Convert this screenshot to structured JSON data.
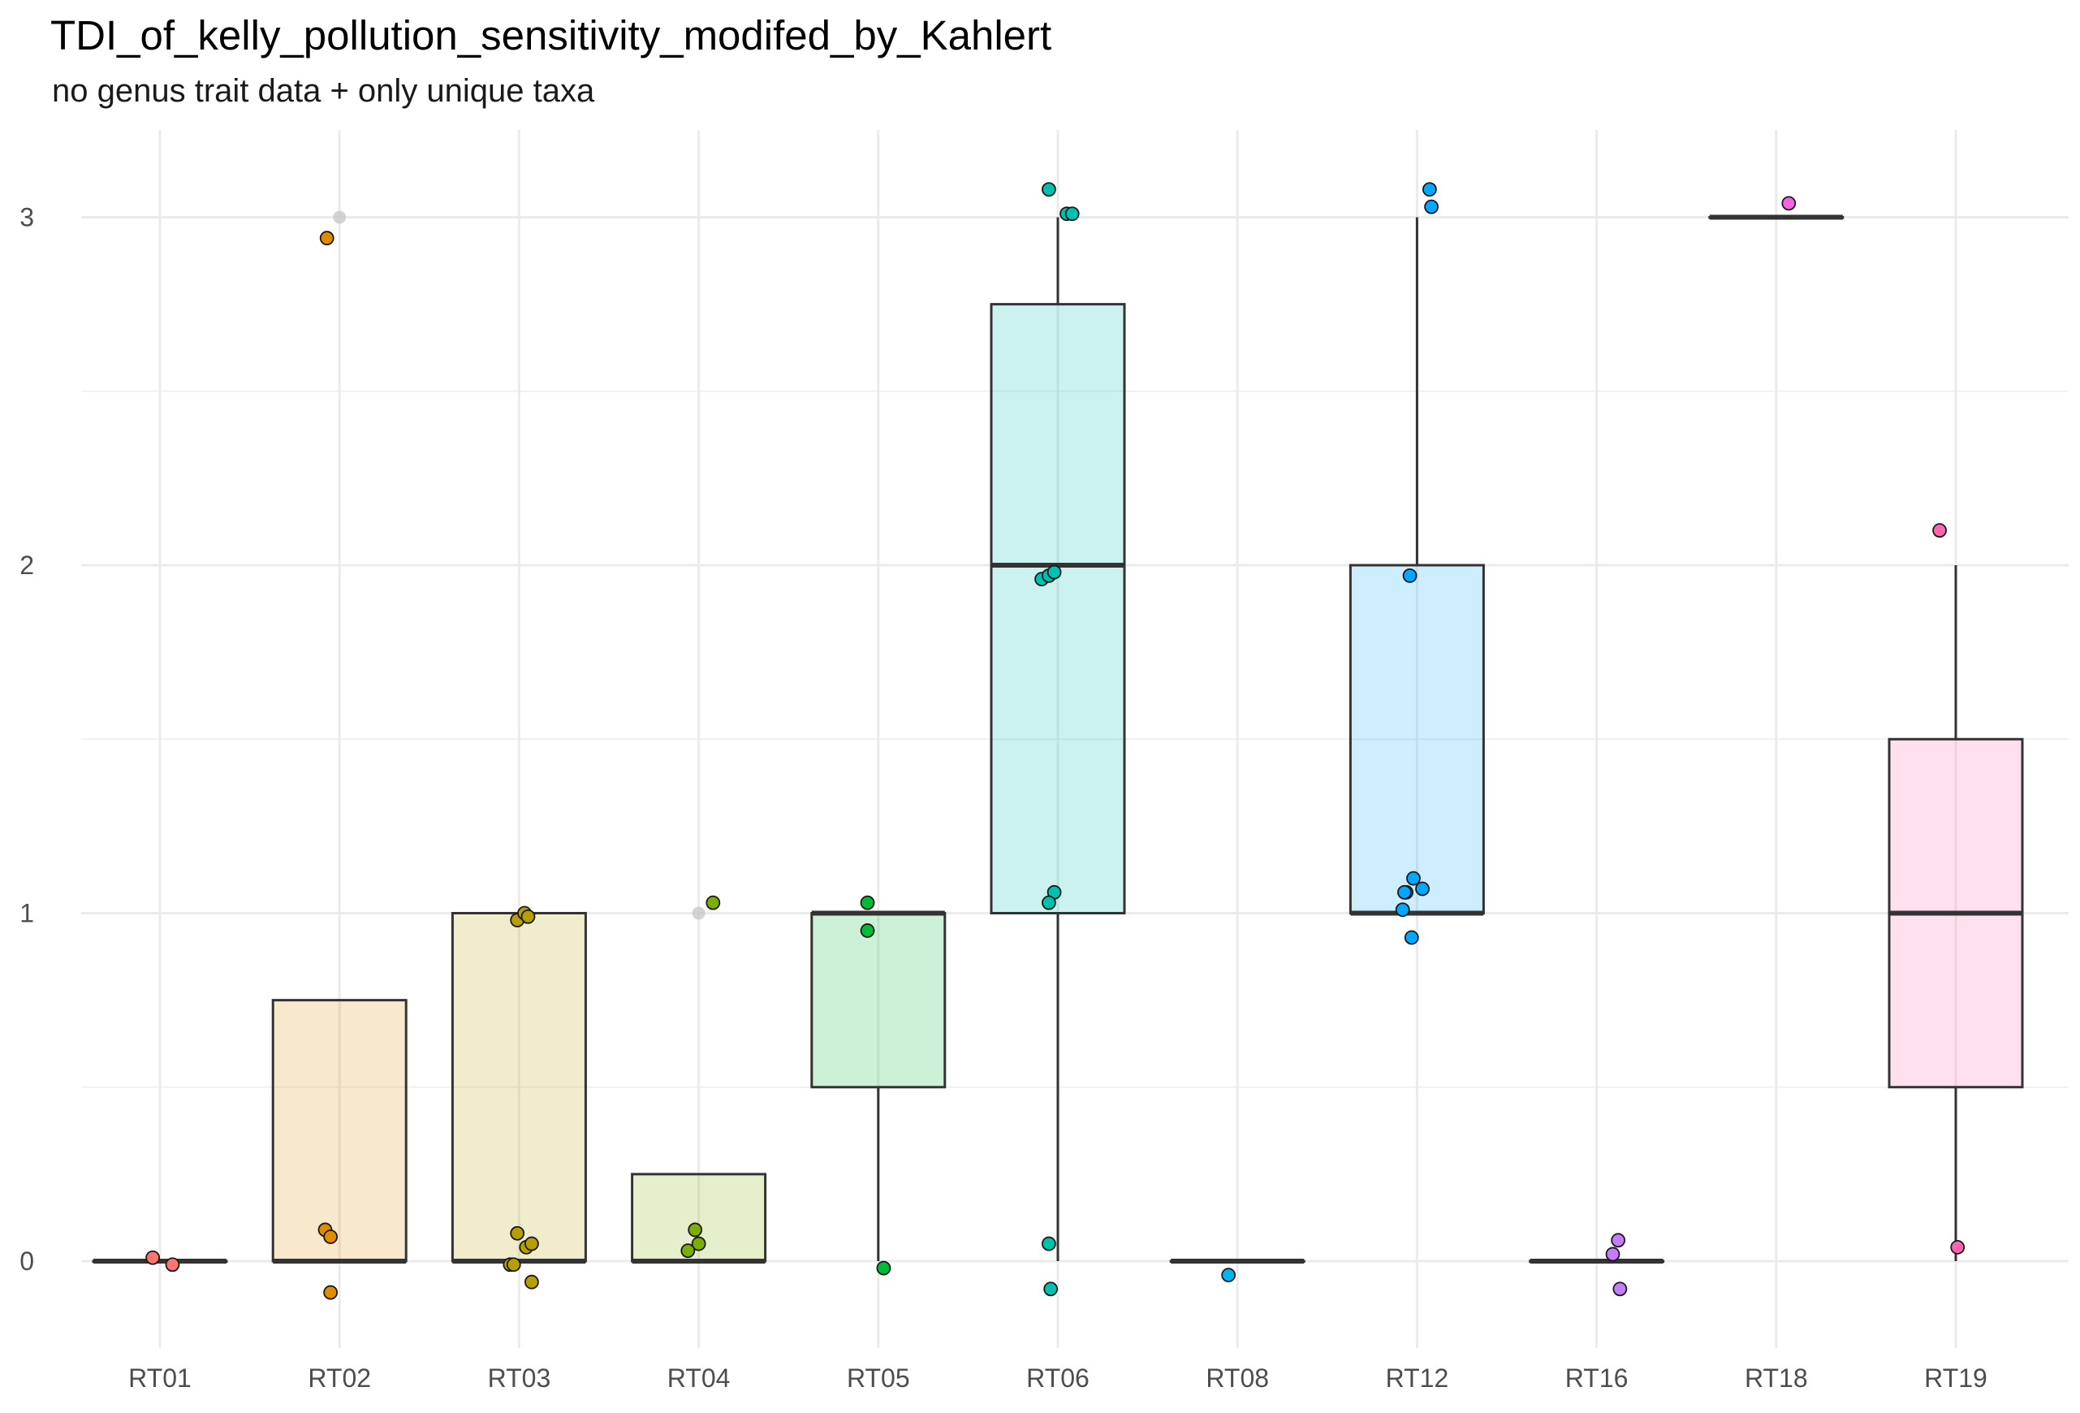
{
  "chart_data": {
    "type": "box",
    "title": "TDI_of_kelly_pollution_sensitivity_modifed_by_Kahlert",
    "subtitle": "no genus trait data + only unique taxa",
    "xlabel": "",
    "ylabel": "",
    "ylim": [
      -0.23,
      3.25
    ],
    "y_ticks": [
      0,
      1,
      2,
      3
    ],
    "y_tick_labels": [
      "0",
      "1",
      "2",
      "3"
    ],
    "grid": true,
    "legend": "none",
    "categories": [
      "RT01",
      "RT02",
      "RT03",
      "RT04",
      "RT05",
      "RT06",
      "RT08",
      "RT12",
      "RT16",
      "RT18",
      "RT19"
    ],
    "boxes": [
      {
        "category": "RT01",
        "q1": 0,
        "median": 0,
        "q3": 0,
        "whisker_low": 0,
        "whisker_high": 0,
        "outliers": [],
        "fill": "#f8766d"
      },
      {
        "category": "RT02",
        "q1": 0,
        "median": 0,
        "q3": 0.75,
        "whisker_low": 0,
        "whisker_high": 0.75,
        "outliers": [
          3
        ],
        "fill": "#de8c00"
      },
      {
        "category": "RT03",
        "q1": 0,
        "median": 0,
        "q3": 1,
        "whisker_low": 0,
        "whisker_high": 1,
        "outliers": [],
        "fill": "#b79f00"
      },
      {
        "category": "RT04",
        "q1": 0,
        "median": 0,
        "q3": 0.25,
        "whisker_low": 0,
        "whisker_high": 0.25,
        "outliers": [
          1
        ],
        "fill": "#7cae00"
      },
      {
        "category": "RT05",
        "q1": 0.5,
        "median": 1,
        "q3": 1,
        "whisker_low": 0,
        "whisker_high": 1,
        "outliers": [],
        "fill": "#00ba38"
      },
      {
        "category": "RT06",
        "q1": 1,
        "median": 2,
        "q3": 2.75,
        "whisker_low": 0,
        "whisker_high": 3,
        "outliers": [],
        "fill": "#00c0af"
      },
      {
        "category": "RT08",
        "q1": 0,
        "median": 0,
        "q3": 0,
        "whisker_low": 0,
        "whisker_high": 0,
        "outliers": [],
        "fill": "#00b4f0"
      },
      {
        "category": "RT12",
        "q1": 1,
        "median": 1,
        "q3": 2,
        "whisker_low": 1,
        "whisker_high": 3,
        "outliers": [],
        "fill": "#00a9ff"
      },
      {
        "category": "RT16",
        "q1": 0,
        "median": 0,
        "q3": 0,
        "whisker_low": 0,
        "whisker_high": 0,
        "outliers": [],
        "fill": "#c77cff"
      },
      {
        "category": "RT18",
        "q1": 3,
        "median": 3,
        "q3": 3,
        "whisker_low": 3,
        "whisker_high": 3,
        "outliers": [],
        "fill": "#f564e3"
      },
      {
        "category": "RT19",
        "q1": 0.5,
        "median": 1,
        "q3": 1.5,
        "whisker_low": 0,
        "whisker_high": 2,
        "outliers": [],
        "fill": "#ff64b0"
      }
    ],
    "points": [
      {
        "category": "RT01",
        "x": -0.04,
        "y": 0.01,
        "color": "#f8766d"
      },
      {
        "category": "RT01",
        "x": 0.07,
        "y": -0.01,
        "color": "#f8766d"
      },
      {
        "category": "RT02",
        "x": -0.07,
        "y": 2.94,
        "color": "#de8c00"
      },
      {
        "category": "RT02",
        "x": -0.08,
        "y": 0.09,
        "color": "#de8c00"
      },
      {
        "category": "RT02",
        "x": -0.05,
        "y": 0.07,
        "color": "#de8c00"
      },
      {
        "category": "RT02",
        "x": -0.05,
        "y": -0.09,
        "color": "#de8c00"
      },
      {
        "category": "RT03",
        "x": -0.01,
        "y": 0.98,
        "color": "#b79f00"
      },
      {
        "category": "RT03",
        "x": 0.03,
        "y": 1.0,
        "color": "#b79f00"
      },
      {
        "category": "RT03",
        "x": 0.05,
        "y": 0.99,
        "color": "#b79f00"
      },
      {
        "category": "RT03",
        "x": -0.01,
        "y": 0.08,
        "color": "#b79f00"
      },
      {
        "category": "RT03",
        "x": 0.04,
        "y": 0.04,
        "color": "#b79f00"
      },
      {
        "category": "RT03",
        "x": 0.07,
        "y": 0.05,
        "color": "#b79f00"
      },
      {
        "category": "RT03",
        "x": -0.05,
        "y": -0.01,
        "color": "#b79f00"
      },
      {
        "category": "RT03",
        "x": -0.03,
        "y": -0.01,
        "color": "#b79f00"
      },
      {
        "category": "RT03",
        "x": 0.07,
        "y": -0.06,
        "color": "#b79f00"
      },
      {
        "category": "RT04",
        "x": 0.08,
        "y": 1.03,
        "color": "#7cae00"
      },
      {
        "category": "RT04",
        "x": -0.02,
        "y": 0.09,
        "color": "#7cae00"
      },
      {
        "category": "RT04",
        "x": 0.0,
        "y": 0.05,
        "color": "#7cae00"
      },
      {
        "category": "RT04",
        "x": -0.06,
        "y": 0.03,
        "color": "#7cae00"
      },
      {
        "category": "RT05",
        "x": -0.06,
        "y": 1.03,
        "color": "#00ba38"
      },
      {
        "category": "RT05",
        "x": -0.06,
        "y": 0.95,
        "color": "#00ba38"
      },
      {
        "category": "RT05",
        "x": 0.03,
        "y": -0.02,
        "color": "#00ba38"
      },
      {
        "category": "RT06",
        "x": -0.05,
        "y": 3.08,
        "color": "#00c0af"
      },
      {
        "category": "RT06",
        "x": 0.05,
        "y": 3.01,
        "color": "#00c0af"
      },
      {
        "category": "RT06",
        "x": 0.08,
        "y": 3.01,
        "color": "#00c0af"
      },
      {
        "category": "RT06",
        "x": -0.09,
        "y": 1.96,
        "color": "#00c0af"
      },
      {
        "category": "RT06",
        "x": -0.05,
        "y": 1.97,
        "color": "#00c0af"
      },
      {
        "category": "RT06",
        "x": -0.02,
        "y": 1.98,
        "color": "#00c0af"
      },
      {
        "category": "RT06",
        "x": -0.02,
        "y": 1.06,
        "color": "#00c0af"
      },
      {
        "category": "RT06",
        "x": -0.05,
        "y": 1.03,
        "color": "#00c0af"
      },
      {
        "category": "RT06",
        "x": -0.05,
        "y": 0.05,
        "color": "#00c0af"
      },
      {
        "category": "RT06",
        "x": -0.04,
        "y": -0.08,
        "color": "#00c0af"
      },
      {
        "category": "RT08",
        "x": -0.05,
        "y": -0.04,
        "color": "#00b4f0"
      },
      {
        "category": "RT12",
        "x": 0.07,
        "y": 3.08,
        "color": "#00a9ff"
      },
      {
        "category": "RT12",
        "x": 0.08,
        "y": 3.03,
        "color": "#00a9ff"
      },
      {
        "category": "RT12",
        "x": -0.04,
        "y": 1.97,
        "color": "#00a9ff"
      },
      {
        "category": "RT12",
        "x": -0.02,
        "y": 1.1,
        "color": "#00a9ff"
      },
      {
        "category": "RT12",
        "x": -0.06,
        "y": 1.06,
        "color": "#00a9ff"
      },
      {
        "category": "RT12",
        "x": -0.07,
        "y": 1.06,
        "color": "#00a9ff"
      },
      {
        "category": "RT12",
        "x": 0.03,
        "y": 1.07,
        "color": "#00a9ff"
      },
      {
        "category": "RT12",
        "x": -0.08,
        "y": 1.01,
        "color": "#00a9ff"
      },
      {
        "category": "RT12",
        "x": -0.03,
        "y": 0.93,
        "color": "#00a9ff"
      },
      {
        "category": "RT16",
        "x": 0.12,
        "y": 0.06,
        "color": "#c77cff"
      },
      {
        "category": "RT16",
        "x": 0.09,
        "y": 0.02,
        "color": "#c77cff"
      },
      {
        "category": "RT16",
        "x": 0.13,
        "y": -0.08,
        "color": "#c77cff"
      },
      {
        "category": "RT18",
        "x": 0.07,
        "y": 3.04,
        "color": "#f564e3"
      },
      {
        "category": "RT19",
        "x": -0.09,
        "y": 2.1,
        "color": "#ff64b0"
      },
      {
        "category": "RT19",
        "x": 0.01,
        "y": 0.04,
        "color": "#ff64b0"
      }
    ],
    "style": {
      "box_fill_alpha": 0.2,
      "box_stroke": "#333333",
      "grid_color": "#ebebeb",
      "outlier_color": "#c9c9c9",
      "point_stroke": "#1a1a1a"
    }
  }
}
